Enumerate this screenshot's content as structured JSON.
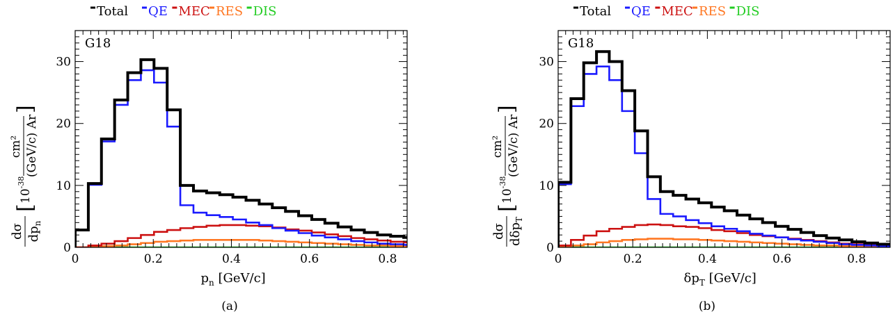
{
  "panels": [
    {
      "caption": "(a)",
      "legend": [
        {
          "label": "Total",
          "color": "#000000"
        },
        {
          "label": "QE",
          "color": "#1a1aff"
        },
        {
          "label": "MEC",
          "color": "#cc1111"
        },
        {
          "label": "RES",
          "color": "#ff7722"
        },
        {
          "label": "DIS",
          "color": "#22cc22"
        }
      ],
      "chart_data": {
        "type": "line",
        "step": true,
        "annotation": "G18",
        "xlabel_main": "p",
        "xlabel_sub": "n",
        "xlabel_unit": " [GeV/c]",
        "ylabel_num": "dσ",
        "ylabel_den_main": "dp",
        "ylabel_den_sub": "n",
        "ylabel_exp": "-38",
        "ylabel_base": "10",
        "ylabel_frac_num": "cm²",
        "ylabel_frac_den": "(GeV/c) Ar",
        "xlim": [
          0,
          0.85
        ],
        "ylim": [
          0,
          35
        ],
        "xticks": [
          0,
          0.2,
          0.4,
          0.6,
          0.8
        ],
        "xtick_labels": [
          "0",
          "0.2",
          "0.4",
          "0.6",
          "0.8"
        ],
        "yticks": [
          0,
          10,
          20,
          30
        ],
        "ytick_labels": [
          "0",
          "10",
          "20",
          "30"
        ],
        "bin_edges": [
          0,
          0.0337,
          0.0673,
          0.101,
          0.1346,
          0.1683,
          0.2019,
          0.2356,
          0.2692,
          0.3029,
          0.3365,
          0.3702,
          0.4038,
          0.4375,
          0.4712,
          0.5048,
          0.5385,
          0.5721,
          0.6058,
          0.6394,
          0.6731,
          0.7067,
          0.7404,
          0.774,
          0.8077,
          0.8413,
          0.875
        ],
        "series": [
          {
            "name": "Total",
            "color": "#000000",
            "values": [
              2.8,
              10.3,
              17.5,
              23.8,
              28.2,
              30.3,
              28.9,
              22.2,
              10.0,
              9.1,
              8.8,
              8.5,
              8.1,
              7.6,
              7.0,
              6.4,
              5.8,
              5.1,
              4.5,
              3.9,
              3.3,
              2.8,
              2.4,
              2.0,
              1.8,
              1.6
            ]
          },
          {
            "name": "QE",
            "color": "#1a1aff",
            "values": [
              2.8,
              10.1,
              17.1,
              23.0,
              27.0,
              28.6,
              26.6,
              19.5,
              6.8,
              5.6,
              5.2,
              4.9,
              4.5,
              4.0,
              3.6,
              3.1,
              2.7,
              2.3,
              1.9,
              1.6,
              1.3,
              1.0,
              0.8,
              0.6,
              0.5,
              0.4
            ]
          },
          {
            "name": "MEC",
            "color": "#cc1111",
            "values": [
              0.0,
              0.3,
              0.6,
              1.0,
              1.5,
              2.0,
              2.5,
              2.8,
              3.1,
              3.3,
              3.5,
              3.6,
              3.6,
              3.5,
              3.4,
              3.2,
              2.9,
              2.7,
              2.4,
              2.1,
              1.8,
              1.5,
              1.3,
              1.1,
              0.9,
              0.8
            ]
          },
          {
            "name": "RES",
            "color": "#ff7722",
            "values": [
              0.0,
              0.1,
              0.2,
              0.3,
              0.5,
              0.7,
              0.9,
              1.0,
              1.1,
              1.2,
              1.2,
              1.2,
              1.2,
              1.2,
              1.1,
              1.0,
              0.9,
              0.8,
              0.7,
              0.6,
              0.5,
              0.4,
              0.3,
              0.3,
              0.2,
              0.2
            ]
          },
          {
            "name": "DIS",
            "color": "#22cc22",
            "values": [
              0.0,
              0.0,
              0.0,
              0.0,
              0.0,
              0.0,
              0.0,
              0.0,
              0.0,
              0.0,
              0.0,
              0.0,
              0.0,
              0.0,
              0.0,
              0.0,
              0.0,
              0.0,
              0.0,
              0.0,
              0.0,
              0.0,
              0.0,
              0.0,
              0.0,
              0.0
            ]
          }
        ]
      }
    },
    {
      "caption": "(b)",
      "legend": [
        {
          "label": "Total",
          "color": "#000000"
        },
        {
          "label": "QE",
          "color": "#1a1aff"
        },
        {
          "label": "MEC",
          "color": "#cc1111"
        },
        {
          "label": "RES",
          "color": "#ff7722"
        },
        {
          "label": "DIS",
          "color": "#22cc22"
        }
      ],
      "chart_data": {
        "type": "line",
        "step": true,
        "annotation": "G18",
        "xlabel_main": "δp",
        "xlabel_sub": "T",
        "xlabel_unit": " [GeV/c]",
        "ylabel_num": "dσ",
        "ylabel_den_main": "dδp",
        "ylabel_den_sub": "T",
        "ylabel_exp": "-38",
        "ylabel_base": "10",
        "ylabel_frac_num": "cm²",
        "ylabel_frac_den": "(GeV/c) Ar",
        "xlim": [
          0,
          0.89
        ],
        "ylim": [
          0,
          35
        ],
        "xticks": [
          0,
          0.2,
          0.4,
          0.6,
          0.8
        ],
        "xtick_labels": [
          "0",
          "0.2",
          "0.4",
          "0.6",
          "0.8"
        ],
        "yticks": [
          0,
          10,
          20,
          30
        ],
        "ytick_labels": [
          "0",
          "10",
          "20",
          "30"
        ],
        "bin_edges": [
          0,
          0.0343,
          0.0685,
          0.1028,
          0.137,
          0.1713,
          0.2055,
          0.2398,
          0.274,
          0.3083,
          0.3425,
          0.3768,
          0.411,
          0.4453,
          0.4795,
          0.5138,
          0.548,
          0.5823,
          0.6165,
          0.6508,
          0.685,
          0.7193,
          0.7535,
          0.7878,
          0.822,
          0.8563,
          0.89
        ],
        "series": [
          {
            "name": "Total",
            "color": "#000000",
            "values": [
              10.5,
              24.0,
              29.8,
              31.6,
              30.0,
              25.3,
              18.8,
              11.4,
              9.0,
              8.4,
              7.8,
              7.2,
              6.5,
              5.9,
              5.2,
              4.6,
              4.0,
              3.4,
              2.9,
              2.4,
              1.9,
              1.5,
              1.2,
              0.9,
              0.7,
              0.5
            ]
          },
          {
            "name": "QE",
            "color": "#1a1aff",
            "values": [
              10.2,
              22.8,
              28.0,
              29.2,
              27.0,
              22.0,
              15.2,
              7.8,
              5.4,
              5.0,
              4.4,
              3.9,
              3.4,
              3.0,
              2.6,
              2.2,
              1.9,
              1.6,
              1.3,
              1.1,
              0.9,
              0.7,
              0.5,
              0.4,
              0.3,
              0.2
            ]
          },
          {
            "name": "MEC",
            "color": "#cc1111",
            "values": [
              0.3,
              1.2,
              1.9,
              2.6,
              3.0,
              3.3,
              3.6,
              3.7,
              3.6,
              3.4,
              3.3,
              3.1,
              2.8,
              2.6,
              2.3,
              2.0,
              1.8,
              1.6,
              1.4,
              1.2,
              1.0,
              0.8,
              0.6,
              0.5,
              0.4,
              0.3
            ]
          },
          {
            "name": "RES",
            "color": "#ff7722",
            "values": [
              0.1,
              0.3,
              0.5,
              0.8,
              1.0,
              1.2,
              1.3,
              1.4,
              1.4,
              1.3,
              1.3,
              1.2,
              1.1,
              1.0,
              0.9,
              0.8,
              0.7,
              0.6,
              0.5,
              0.4,
              0.3,
              0.3,
              0.2,
              0.2,
              0.1,
              0.1
            ]
          },
          {
            "name": "DIS",
            "color": "#22cc22",
            "values": [
              0.0,
              0.0,
              0.0,
              0.0,
              0.0,
              0.0,
              0.0,
              0.0,
              0.0,
              0.0,
              0.0,
              0.0,
              0.0,
              0.0,
              0.0,
              0.0,
              0.0,
              0.0,
              0.0,
              0.0,
              0.0,
              0.0,
              0.0,
              0.0,
              0.0,
              0.0
            ]
          }
        ]
      }
    }
  ]
}
